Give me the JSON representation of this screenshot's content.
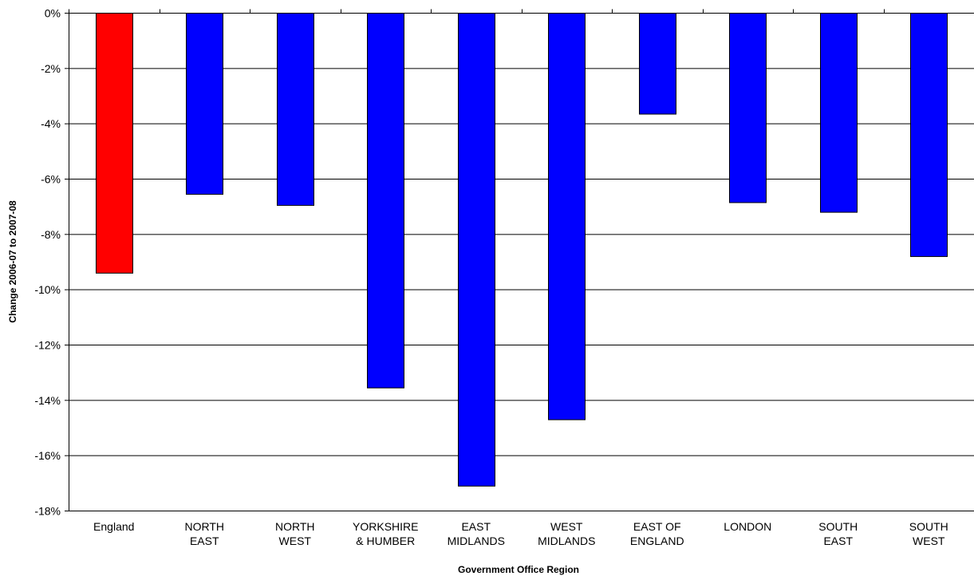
{
  "chart_data": {
    "type": "bar",
    "title": "",
    "xlabel": "Government Office Region",
    "ylabel": "Change 2006-07 to 2007-08",
    "ylim": [
      -18,
      0
    ],
    "y_ticks": [
      "0%",
      "-2%",
      "-4%",
      "-6%",
      "-8%",
      "-10%",
      "-12%",
      "-14%",
      "-16%",
      "-18%"
    ],
    "categories": [
      [
        "England"
      ],
      [
        "NORTH",
        "EAST"
      ],
      [
        "NORTH",
        "WEST"
      ],
      [
        "YORKSHIRE",
        "& HUMBER"
      ],
      [
        "EAST",
        "MIDLANDS"
      ],
      [
        "WEST",
        "MIDLANDS"
      ],
      [
        "EAST OF",
        "ENGLAND"
      ],
      [
        "LONDON"
      ],
      [
        "SOUTH",
        "EAST"
      ],
      [
        "SOUTH",
        "WEST"
      ]
    ],
    "values": [
      -9.4,
      -6.55,
      -6.95,
      -13.55,
      -17.1,
      -14.7,
      -3.65,
      -6.85,
      -7.2,
      -8.8
    ],
    "bar_colors": [
      "#ff0000",
      "#0000ff",
      "#0000ff",
      "#0000ff",
      "#0000ff",
      "#0000ff",
      "#0000ff",
      "#0000ff",
      "#0000ff",
      "#0000ff"
    ],
    "grid": true,
    "legend": "none"
  }
}
